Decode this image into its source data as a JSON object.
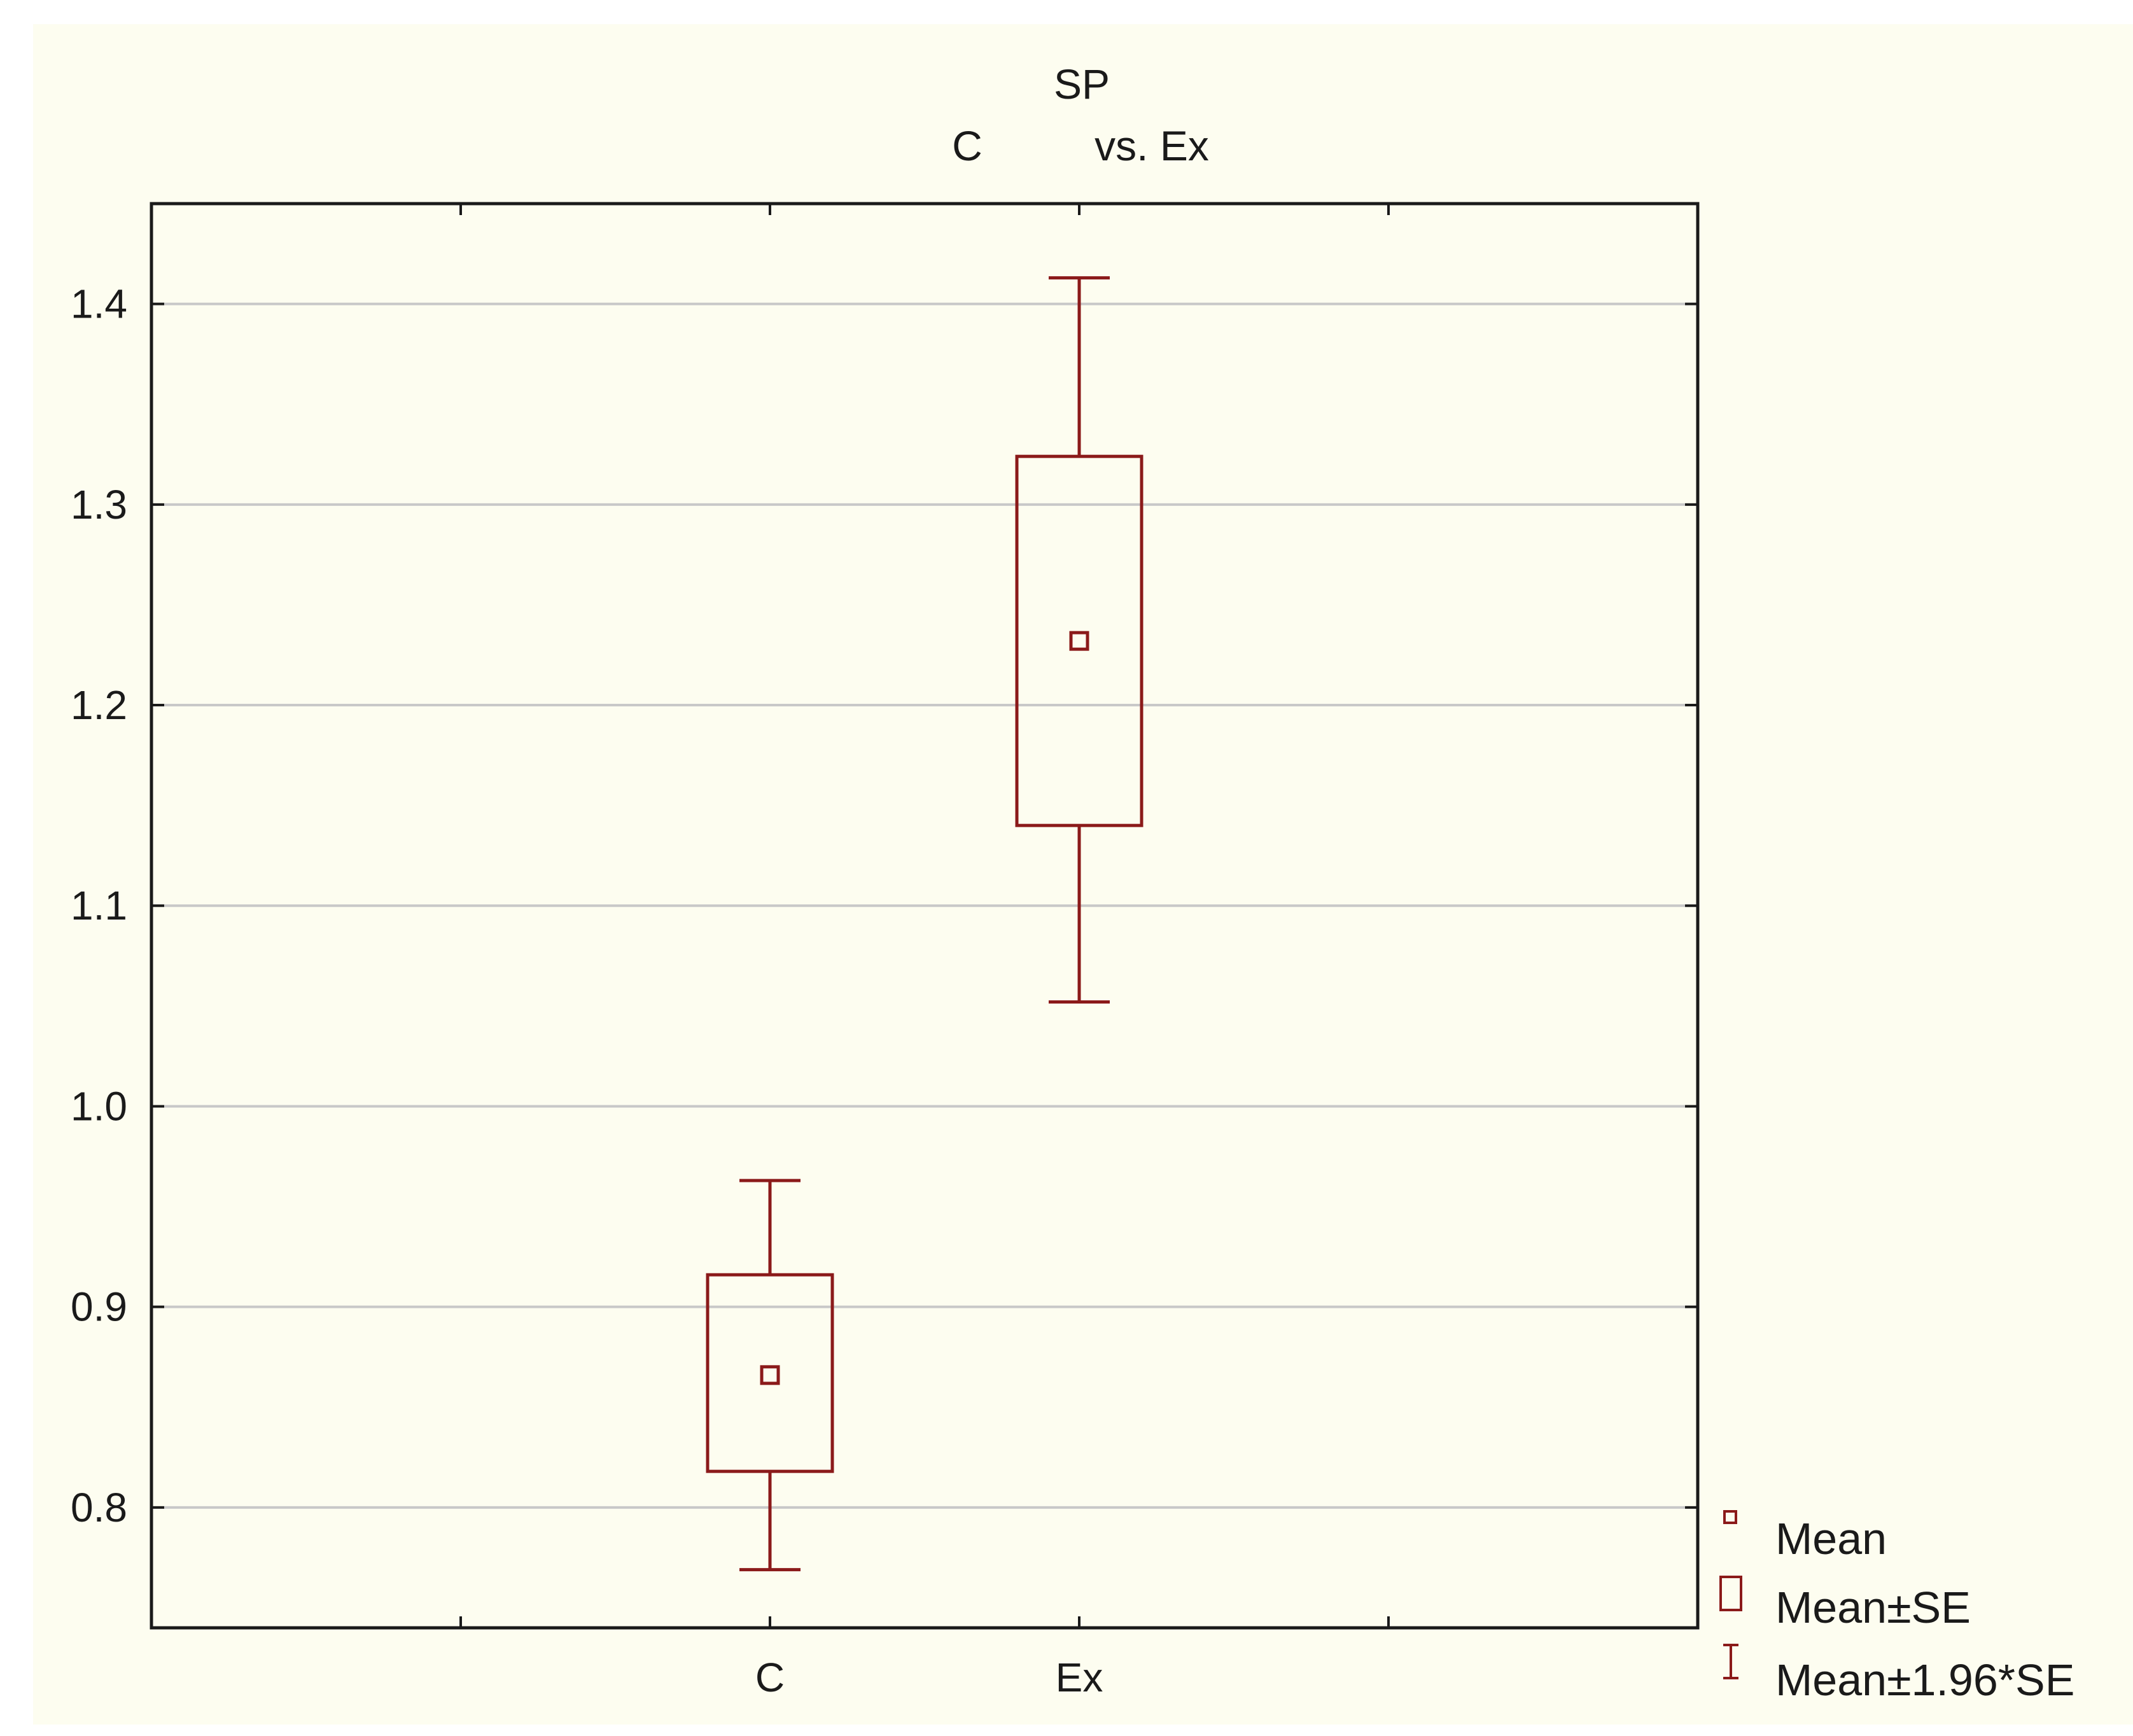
{
  "chart_data": {
    "type": "box",
    "title": "SP",
    "subtitle_left": "C",
    "subtitle_right": "vs. Ex",
    "categories": [
      "C",
      "Ex"
    ],
    "series": [
      {
        "category": "C",
        "mean": 0.866,
        "se_low": 0.818,
        "se_high": 0.916,
        "ci_low": 0.769,
        "ci_high": 0.963
      },
      {
        "category": "Ex",
        "mean": 1.232,
        "se_low": 1.14,
        "se_high": 1.324,
        "ci_low": 1.052,
        "ci_high": 1.413
      }
    ],
    "y_ticks": [
      "0.8",
      "0.9",
      "1.0",
      "1.1",
      "1.2",
      "1.3",
      "1.4"
    ],
    "y_tick_values": [
      0.8,
      0.9,
      1.0,
      1.1,
      1.2,
      1.3,
      1.4
    ],
    "ylim": [
      0.74,
      1.45
    ],
    "grid": true,
    "legend_position": "bottom-right",
    "legend": [
      "Mean",
      "Mean±SE",
      "Mean±1.96*SE"
    ],
    "colors": {
      "series": "#8b1a1a",
      "grid": "#c8c8c8",
      "axis": "#1a1a1a",
      "background": "#fdfdf0"
    }
  }
}
